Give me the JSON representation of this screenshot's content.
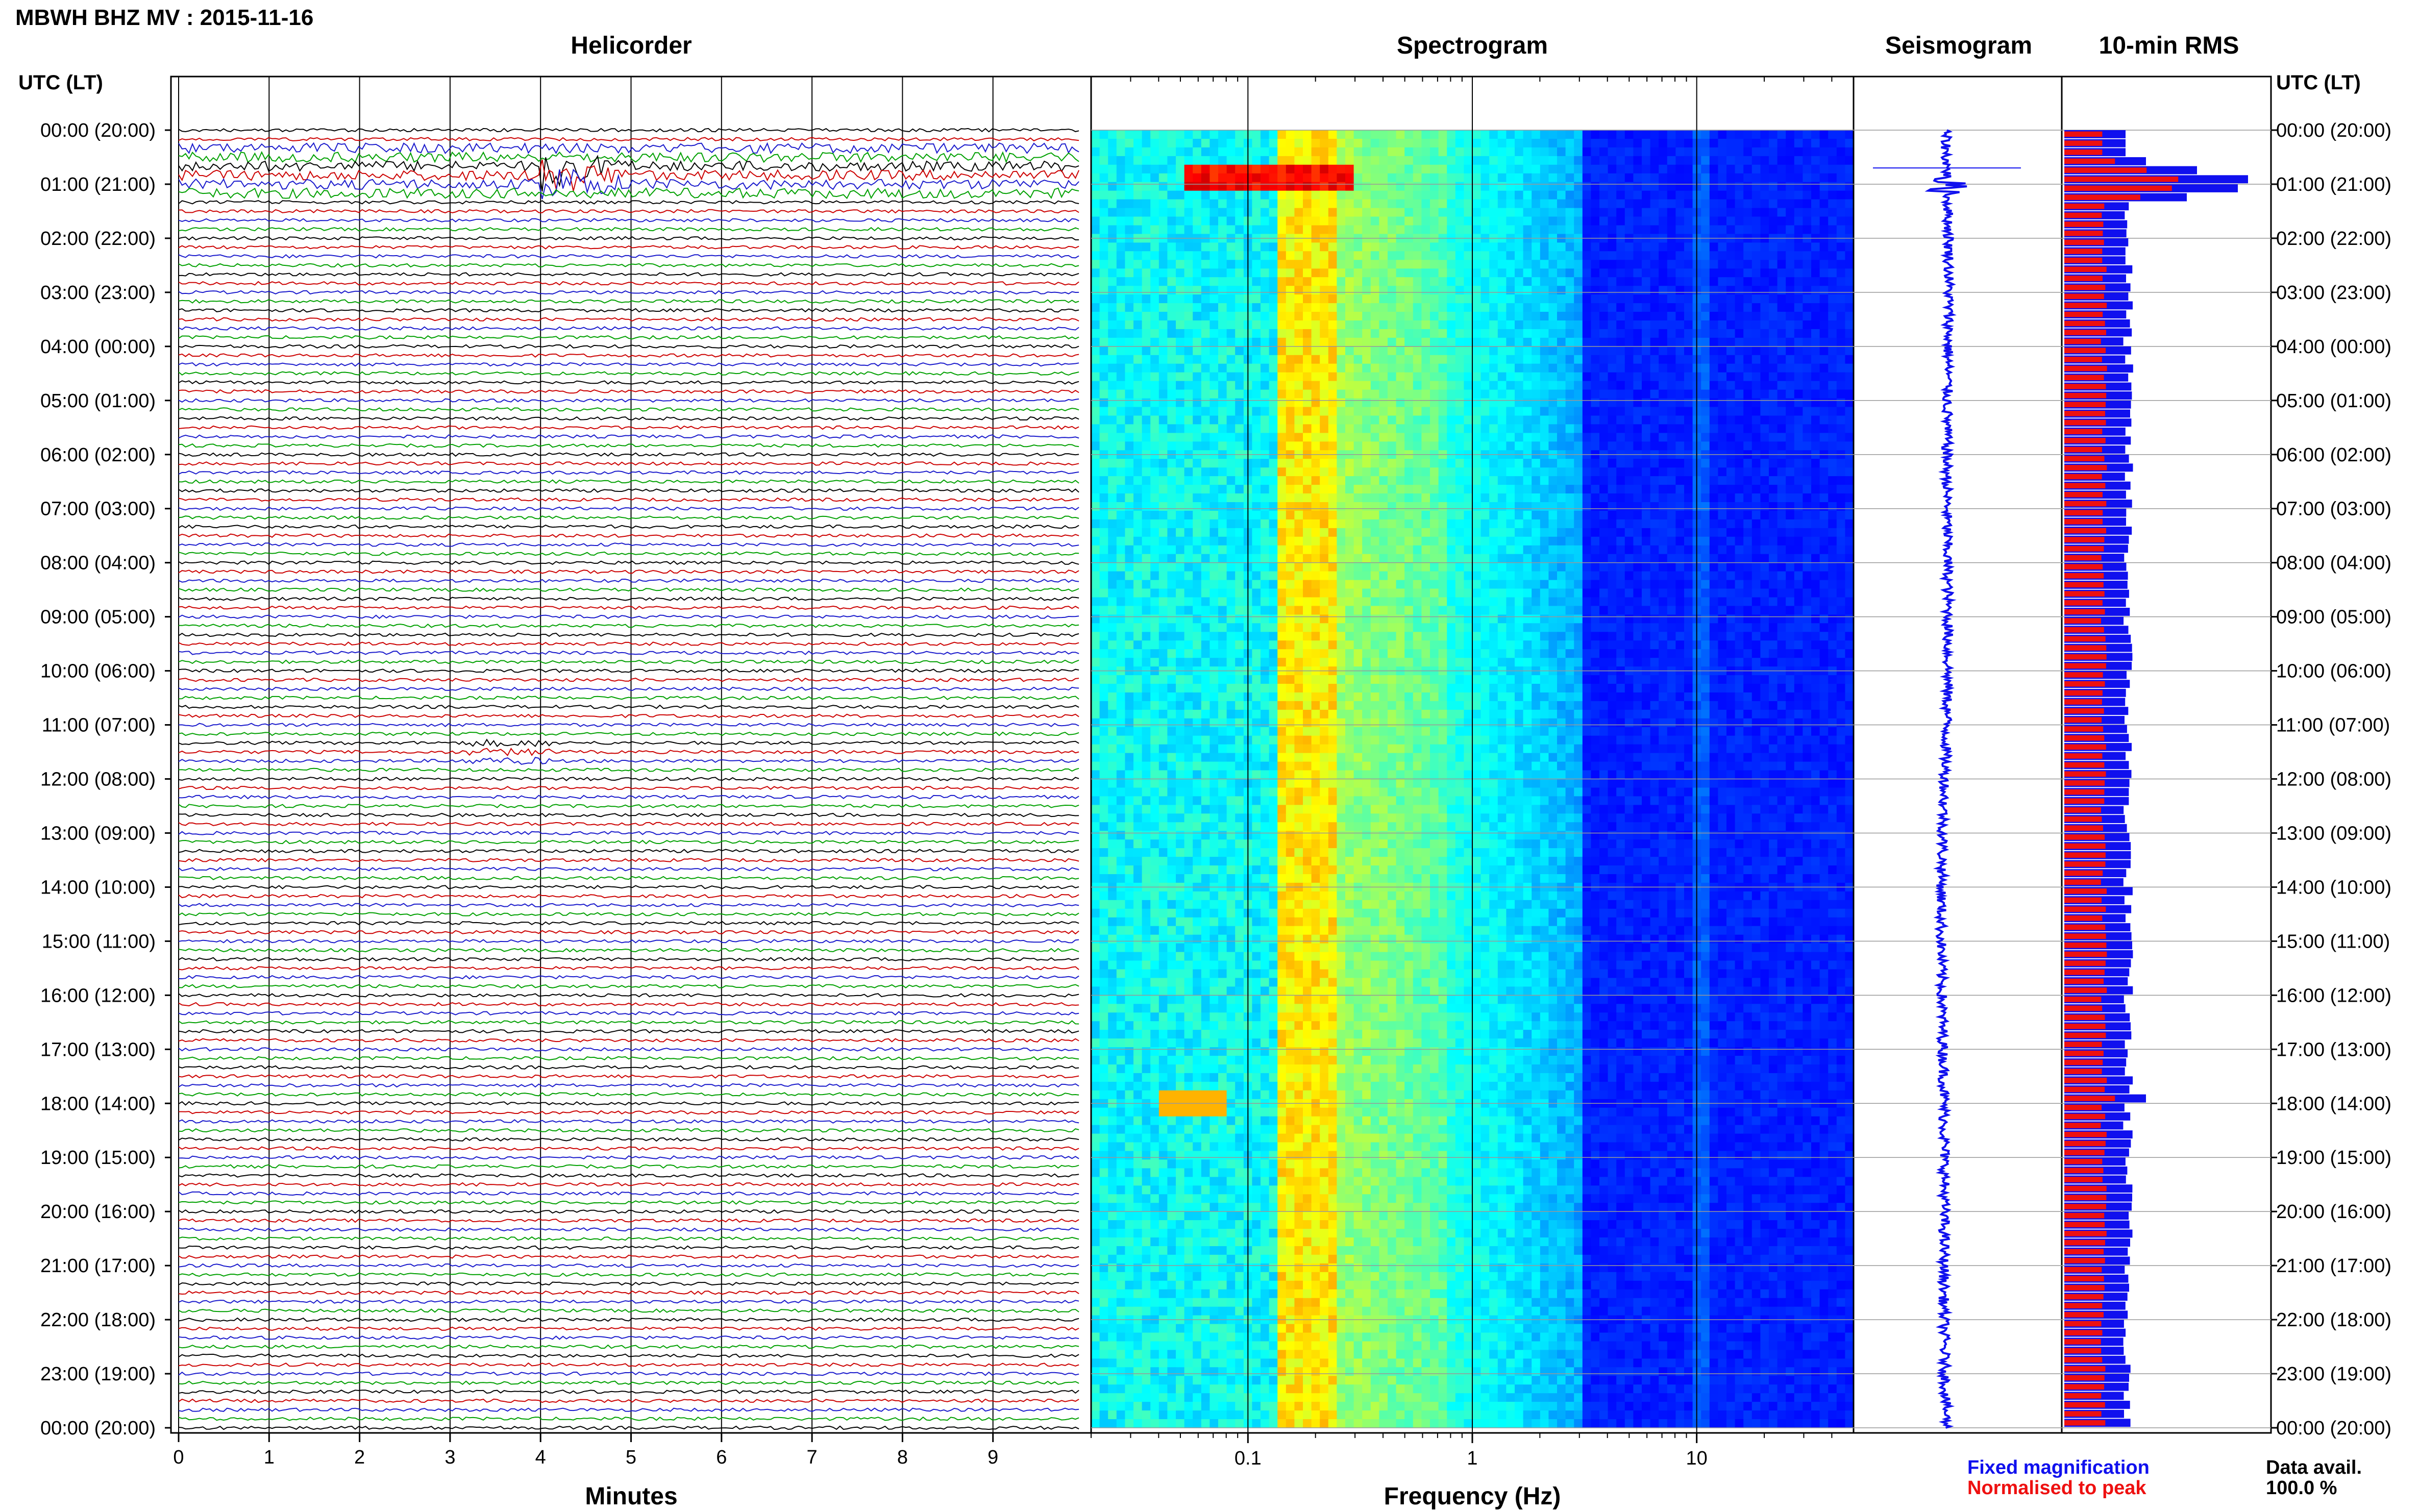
{
  "header": {
    "title": "MBWH BHZ MV : 2015-11-16",
    "utc_label_left": "UTC (LT)",
    "utc_label_right": "UTC (LT)"
  },
  "panels": {
    "helicorder": "Helicorder",
    "spectrogram": "Spectrogram",
    "seismogram": "Seismogram",
    "rms": "10-min RMS"
  },
  "axes": {
    "helicorder_xlabel": "Minutes",
    "spectrogram_xlabel": "Frequency (Hz)"
  },
  "legend": {
    "fixed": "Fixed magnification",
    "normalised": "Normalised to peak"
  },
  "availability": {
    "label": "Data avail.",
    "value": "100.0 %"
  },
  "colors": {
    "trace_cycle": [
      "#000000",
      "#cc0000",
      "#1a1acc",
      "#00a000"
    ],
    "rms_fixed": "#1010ee",
    "rms_normalised": "#ee1010",
    "seismogram": "#1010ee"
  },
  "chart_data": [
    {
      "type": "line",
      "name": "Helicorder",
      "xlabel": "Minutes",
      "x_ticks": [
        0,
        1,
        2,
        3,
        4,
        5,
        6,
        7,
        8,
        9
      ],
      "xlim": [
        0,
        10
      ],
      "y_tick_labels": [
        "00:00 (20:00)",
        "01:00 (21:00)",
        "02:00 (22:00)",
        "03:00 (23:00)",
        "04:00 (00:00)",
        "05:00 (01:00)",
        "06:00 (02:00)",
        "07:00 (03:00)",
        "08:00 (04:00)",
        "09:00 (05:00)",
        "10:00 (06:00)",
        "11:00 (07:00)",
        "12:00 (08:00)",
        "13:00 (09:00)",
        "14:00 (10:00)",
        "15:00 (11:00)",
        "16:00 (12:00)",
        "17:00 (13:00)",
        "18:00 (14:00)",
        "19:00 (15:00)",
        "20:00 (16:00)",
        "21:00 (17:00)",
        "22:00 (18:00)",
        "23:00 (19:00)",
        "00:00 (20:00)"
      ],
      "traces_per_hour": 6,
      "events": [
        {
          "hour": 0.8,
          "minute": 4.1,
          "note": "large burst"
        },
        {
          "hour": 11.5,
          "minute": 3.2,
          "note": "small burst"
        }
      ]
    },
    {
      "type": "heatmap",
      "name": "Spectrogram",
      "xlabel": "Frequency (Hz)",
      "x_scale": "log",
      "x_tick_labels": [
        "0.1",
        "1",
        "10"
      ],
      "xlim": [
        0.02,
        50
      ],
      "colormap": "jet"
    },
    {
      "type": "line",
      "name": "Seismogram"
    },
    {
      "type": "bar",
      "name": "10-min RMS",
      "orientation": "horizontal",
      "bins": 144
    }
  ]
}
